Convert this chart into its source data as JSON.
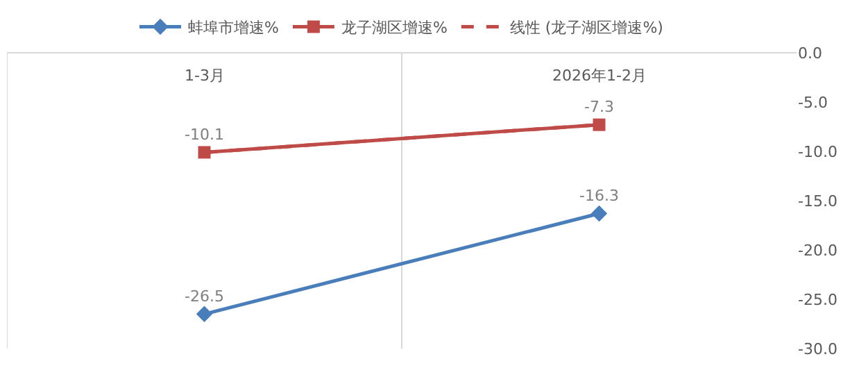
{
  "chart_data": {
    "type": "line",
    "categories": [
      "1-3月",
      "2026年1-2月"
    ],
    "series": [
      {
        "name": "蚌埠市增速%",
        "color": "#4a7ebb",
        "values": [
          -26.5,
          -16.3
        ],
        "marker": "diamond"
      },
      {
        "name": "龙子湖区增速%",
        "color": "#be4b48",
        "values": [
          -10.1,
          -7.3
        ],
        "marker": "square"
      },
      {
        "name": "线性 (龙子湖区增速%)",
        "color": "#be4b48",
        "values": [
          -10.1,
          -7.3
        ],
        "value_labels": [
          null,
          null
        ],
        "marker": "none",
        "line_style": "dashed"
      }
    ],
    "ylim": [
      -30,
      0
    ],
    "yticks": [
      {
        "value": 0,
        "label": "0.0"
      },
      {
        "value": -5,
        "label": "-5.0"
      },
      {
        "value": -10,
        "label": "-10.0"
      },
      {
        "value": -15,
        "label": "-15.0"
      },
      {
        "value": -20,
        "label": "-20.0"
      },
      {
        "value": -25,
        "label": "-25.0"
      },
      {
        "value": -30,
        "label": "-30.0"
      }
    ],
    "grid": "x",
    "legend": "top",
    "data_labels": true
  }
}
